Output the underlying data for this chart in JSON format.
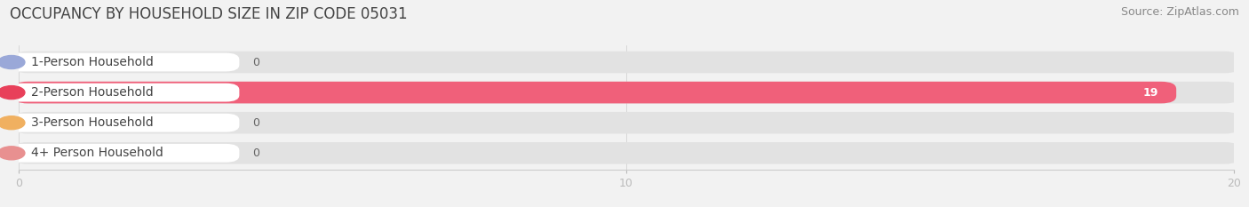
{
  "title": "OCCUPANCY BY HOUSEHOLD SIZE IN ZIP CODE 05031",
  "source": "Source: ZipAtlas.com",
  "categories": [
    "1-Person Household",
    "2-Person Household",
    "3-Person Household",
    "4+ Person Household"
  ],
  "values": [
    0,
    19,
    0,
    0
  ],
  "bar_colors": [
    "#aab4e0",
    "#f0607a",
    "#f5c98a",
    "#f0a0a0"
  ],
  "label_circle_colors": [
    "#9aa8d8",
    "#e8405a",
    "#f0b060",
    "#e89090"
  ],
  "xlim": [
    0,
    20
  ],
  "xticks": [
    0,
    10,
    20
  ],
  "background_color": "#f2f2f2",
  "bar_bg_color": "#e2e2e2",
  "title_fontsize": 12,
  "source_fontsize": 9,
  "label_fontsize": 10,
  "value_fontsize": 9
}
